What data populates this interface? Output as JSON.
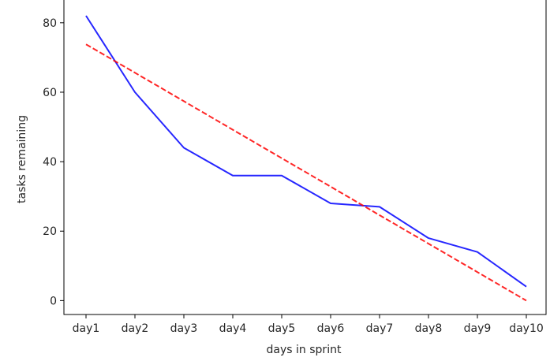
{
  "chart_data": {
    "type": "line",
    "title": "",
    "xlabel": "days in sprint",
    "ylabel": "tasks remaining",
    "categories": [
      "day1",
      "day2",
      "day3",
      "day4",
      "day5",
      "day6",
      "day7",
      "day8",
      "day9",
      "day10"
    ],
    "ylim": [
      -4,
      87
    ],
    "yticks": [
      0,
      20,
      40,
      60,
      80
    ],
    "grid": false,
    "legend": "none",
    "series": [
      {
        "values": [
          82,
          60,
          44,
          36,
          36,
          28,
          27,
          18,
          14,
          4
        ],
        "color": "#0000ff",
        "style": "solid"
      },
      {
        "values": [
          73.8,
          65.6,
          57.4,
          49.2,
          41.0,
          32.8,
          24.6,
          16.4,
          8.2,
          0
        ],
        "color": "#ff0000",
        "style": "dashed"
      }
    ]
  }
}
